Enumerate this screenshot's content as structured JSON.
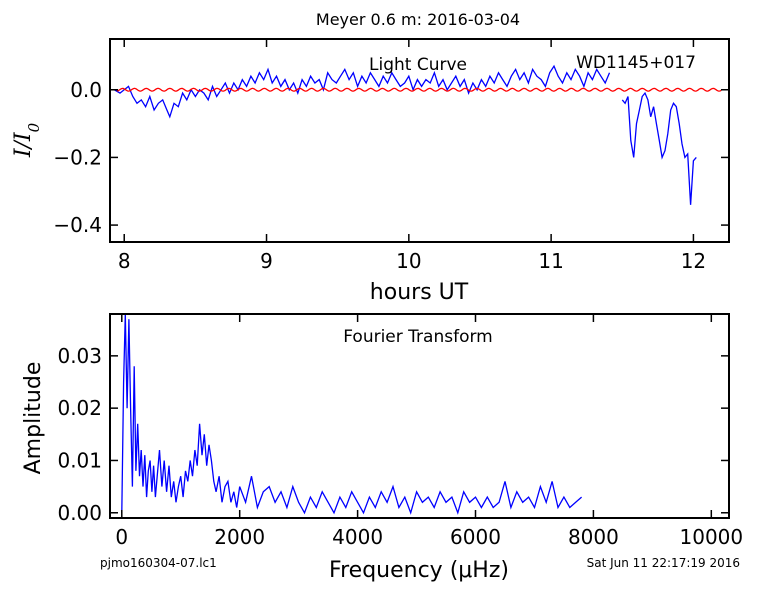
{
  "title": "Meyer 0.6 m:  2016-03-04",
  "footer": {
    "left": "pjmo160304-07.lc1",
    "right": "Sat Jun 11 22:17:19 2016"
  },
  "colors": {
    "data": "#0000ff",
    "model": "#ff0000",
    "axes": "#000000"
  },
  "chart_data": [
    {
      "type": "line",
      "xlabel": "hours UT",
      "ylabel": "I/I_0",
      "xlim": [
        7.9,
        12.25
      ],
      "ylim": [
        -0.45,
        0.15
      ],
      "xticks": [
        8,
        9,
        10,
        11,
        12
      ],
      "xtick_labels": [
        "8",
        "9",
        "10",
        "11",
        "12"
      ],
      "yticks": [
        0.0,
        -0.2,
        -0.4
      ],
      "ytick_labels": [
        "0.0",
        "−0.2",
        "−0.4"
      ],
      "grid": false,
      "annotations": [
        "Light Curve",
        "WD1145+017"
      ],
      "series": [
        {
          "color": "#0000ff",
          "x": [
            7.93,
            7.97,
            8.0,
            8.03,
            8.06,
            8.09,
            8.12,
            8.15,
            8.18,
            8.21,
            8.24,
            8.27,
            8.3,
            8.32,
            8.35,
            8.38,
            8.41,
            8.44,
            8.47,
            8.5,
            8.53,
            8.56,
            8.59,
            8.62,
            8.65,
            8.68,
            8.71,
            8.74,
            8.77,
            8.8,
            8.83,
            8.86,
            8.89,
            8.92,
            8.95,
            8.98,
            9.01,
            9.04,
            9.07,
            9.1,
            9.13,
            9.16,
            9.19,
            9.22,
            9.25,
            9.28,
            9.31,
            9.34,
            9.37,
            9.4,
            9.43,
            9.46,
            9.49,
            9.52,
            9.55,
            9.58,
            9.61,
            9.64,
            9.67,
            9.7,
            9.73,
            9.76,
            9.79,
            9.82,
            9.85,
            9.88,
            9.91,
            9.94,
            9.97,
            10.0,
            10.03,
            10.06,
            10.09,
            10.12,
            10.15,
            10.18,
            10.21,
            10.24,
            10.27,
            10.3,
            10.33,
            10.36,
            10.39,
            10.42,
            10.45,
            10.48,
            10.51,
            10.54,
            10.57,
            10.6,
            10.63,
            10.66,
            10.69,
            10.72,
            10.75,
            10.78,
            10.81,
            10.84,
            10.87,
            10.9,
            10.93,
            10.96,
            10.99,
            11.02,
            11.05,
            11.08,
            11.11,
            11.14,
            11.17,
            11.2,
            11.23,
            11.26,
            11.29,
            11.32,
            11.35,
            11.38,
            11.41
          ],
          "y": [
            0.0,
            -0.01,
            0.0,
            0.01,
            -0.02,
            -0.04,
            -0.03,
            -0.05,
            -0.02,
            -0.06,
            -0.04,
            -0.03,
            -0.06,
            -0.08,
            -0.04,
            -0.05,
            -0.01,
            -0.03,
            0.0,
            -0.02,
            0.0,
            -0.01,
            -0.03,
            0.01,
            -0.02,
            0.0,
            0.02,
            -0.01,
            0.02,
            0.0,
            0.03,
            0.01,
            0.04,
            0.02,
            0.05,
            0.03,
            0.06,
            0.02,
            0.04,
            0.01,
            0.03,
            0.0,
            0.02,
            -0.01,
            0.03,
            0.01,
            0.04,
            0.02,
            0.03,
            0.0,
            0.05,
            0.03,
            0.02,
            0.04,
            0.06,
            0.03,
            0.05,
            0.01,
            0.04,
            0.02,
            0.05,
            0.03,
            0.01,
            0.04,
            0.02,
            0.05,
            0.03,
            0.01,
            0.02,
            0.04,
            0.0,
            0.03,
            0.01,
            0.03,
            0.02,
            0.05,
            0.01,
            0.03,
            0.0,
            0.02,
            0.04,
            0.01,
            0.03,
            -0.01,
            0.02,
            0.0,
            0.03,
            0.01,
            0.04,
            0.02,
            0.05,
            0.03,
            0.01,
            0.04,
            0.06,
            0.03,
            0.05,
            0.02,
            0.06,
            0.04,
            0.03,
            0.01,
            0.05,
            0.07,
            0.04,
            0.02,
            0.05,
            0.03,
            0.06,
            0.04,
            0.01,
            0.05,
            0.03,
            0.06,
            0.04,
            0.02,
            0.05
          ]
        },
        {
          "color": "#0000ff",
          "x": [
            11.5,
            11.52,
            11.54,
            11.56,
            11.58,
            11.6,
            11.62,
            11.64,
            11.66,
            11.68,
            11.7,
            11.72,
            11.74,
            11.76,
            11.78,
            11.8,
            11.82,
            11.84,
            11.86,
            11.88,
            11.9,
            11.92,
            11.94,
            11.96,
            11.98,
            12.0,
            12.02
          ],
          "y": [
            -0.03,
            -0.04,
            -0.02,
            -0.15,
            -0.2,
            -0.1,
            -0.06,
            -0.02,
            -0.01,
            -0.03,
            -0.08,
            -0.05,
            -0.1,
            -0.15,
            -0.2,
            -0.18,
            -0.13,
            -0.06,
            -0.04,
            -0.05,
            -0.1,
            -0.16,
            -0.2,
            -0.19,
            -0.34,
            -0.21,
            -0.2
          ]
        },
        {
          "color": "#ff0000",
          "model": "sinusoid",
          "amplitude": 0.004,
          "period_hours": 0.083,
          "offset": 0.0,
          "x_range": [
            7.95,
            12.2
          ]
        }
      ]
    },
    {
      "type": "line",
      "xlabel": "Frequency (μHz)",
      "ylabel": "Amplitude",
      "xlim": [
        -200,
        10300
      ],
      "ylim": [
        -0.001,
        0.038
      ],
      "xticks": [
        0,
        2000,
        4000,
        6000,
        8000,
        10000
      ],
      "xtick_labels": [
        "0",
        "2000",
        "4000",
        "6000",
        "8000",
        "10000"
      ],
      "yticks": [
        0.0,
        0.01,
        0.02,
        0.03
      ],
      "ytick_labels": [
        "0.00",
        "0.01",
        "0.02",
        "0.03"
      ],
      "grid": false,
      "annotations": [
        "Fourier Transform"
      ],
      "series": [
        {
          "color": "#0000ff",
          "x": [
            0,
            30,
            60,
            90,
            120,
            150,
            180,
            210,
            240,
            270,
            300,
            330,
            360,
            390,
            420,
            450,
            480,
            510,
            540,
            570,
            600,
            640,
            680,
            720,
            760,
            800,
            840,
            880,
            920,
            960,
            1000,
            1040,
            1080,
            1120,
            1160,
            1200,
            1240,
            1280,
            1320,
            1360,
            1400,
            1440,
            1480,
            1520,
            1560,
            1600,
            1650,
            1700,
            1750,
            1800,
            1850,
            1900,
            1950,
            2000,
            2100,
            2200,
            2300,
            2400,
            2500,
            2600,
            2700,
            2800,
            2900,
            3000,
            3100,
            3200,
            3300,
            3400,
            3500,
            3600,
            3700,
            3800,
            3900,
            4000,
            4100,
            4200,
            4300,
            4400,
            4500,
            4600,
            4700,
            4800,
            4900,
            5000,
            5100,
            5200,
            5300,
            5400,
            5500,
            5600,
            5700,
            5800,
            5900,
            6000,
            6100,
            6200,
            6300,
            6400,
            6500,
            6600,
            6700,
            6800,
            6900,
            7000,
            7100,
            7200,
            7300,
            7400,
            7500,
            7600,
            7700,
            7800
          ],
          "y": [
            0.0,
            0.025,
            0.038,
            0.02,
            0.037,
            0.02,
            0.005,
            0.028,
            0.008,
            0.017,
            0.007,
            0.012,
            0.005,
            0.011,
            0.003,
            0.008,
            0.01,
            0.004,
            0.009,
            0.003,
            0.007,
            0.012,
            0.005,
            0.01,
            0.004,
            0.009,
            0.003,
            0.006,
            0.002,
            0.005,
            0.007,
            0.003,
            0.008,
            0.006,
            0.01,
            0.007,
            0.012,
            0.009,
            0.017,
            0.011,
            0.015,
            0.009,
            0.013,
            0.01,
            0.006,
            0.004,
            0.007,
            0.002,
            0.005,
            0.006,
            0.002,
            0.004,
            0.001,
            0.005,
            0.002,
            0.007,
            0.001,
            0.004,
            0.005,
            0.002,
            0.004,
            0.001,
            0.005,
            0.002,
            0.0,
            0.003,
            0.001,
            0.004,
            0.002,
            0.0,
            0.003,
            0.001,
            0.004,
            0.002,
            0.0,
            0.003,
            0.001,
            0.004,
            0.002,
            0.005,
            0.001,
            0.003,
            0.0,
            0.004,
            0.002,
            0.003,
            0.001,
            0.004,
            0.002,
            0.003,
            0.0,
            0.004,
            0.002,
            0.003,
            0.001,
            0.003,
            0.001,
            0.002,
            0.006,
            0.001,
            0.004,
            0.002,
            0.003,
            0.001,
            0.005,
            0.002,
            0.006,
            0.001,
            0.003,
            0.001,
            0.002,
            0.003
          ]
        }
      ]
    }
  ]
}
